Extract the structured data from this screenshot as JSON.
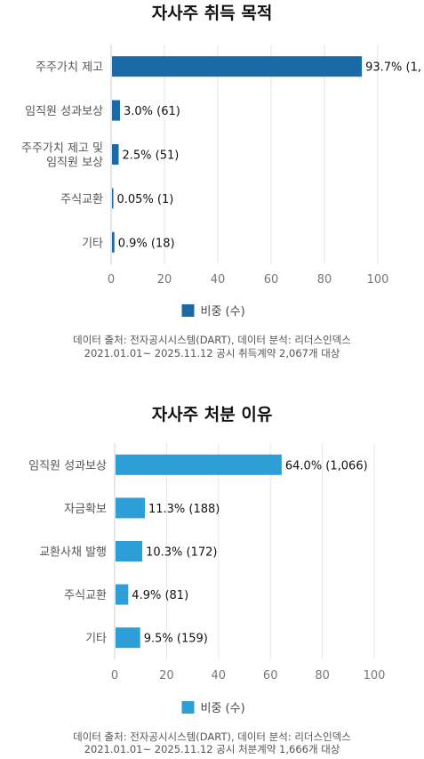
{
  "chart_data": [
    {
      "type": "bar",
      "orientation": "horizontal",
      "title": "자사주 취득 목적",
      "categories": [
        [
          "주주가치 제고"
        ],
        [
          "임직원 성과보상"
        ],
        [
          "주주가치 제고 및",
          "임직원 보상"
        ],
        [
          "주식교환"
        ],
        [
          "기타"
        ]
      ],
      "series": [
        {
          "name": "비중 (수)",
          "color": "#1a6aa8",
          "values": [
            93.7,
            3.0,
            2.5,
            0.05,
            0.9
          ],
          "labels": [
            "93.7%  (1,",
            "3.0%  (61)",
            "2.5%  (51)",
            "0.05%  (1)",
            "0.9%  (18)"
          ]
        }
      ],
      "xlim": [
        0,
        100
      ],
      "xticks": [
        "0",
        "20",
        "40",
        "60",
        "80",
        "100"
      ],
      "grid": true,
      "legend_position": "bottom",
      "notes": [
        "데이터 출처: 전자공시시스템(DART),  데이터 분석: 리더스인덱스",
        "2021.01.01~ 2025.11.12 공시 취득계약 2,067개 대상"
      ]
    },
    {
      "type": "bar",
      "orientation": "horizontal",
      "title": "자사주 처분 이유",
      "categories": [
        [
          "임직원 성과보상"
        ],
        [
          "자금확보"
        ],
        [
          "교환사채 발행"
        ],
        [
          "주식교환"
        ],
        [
          "기타"
        ]
      ],
      "series": [
        {
          "name": "비중 (수)",
          "color": "#2e9fd6",
          "values": [
            64.0,
            11.3,
            10.3,
            4.9,
            9.5
          ],
          "labels": [
            "64.0% (1,066)",
            "11.3%  (188)",
            "10.3%  (172)",
            "4.9%  (81)",
            "9.5% (159)"
          ]
        }
      ],
      "xlim": [
        0,
        100
      ],
      "xticks": [
        "0",
        "20",
        "40",
        "60",
        "80",
        "100"
      ],
      "grid": true,
      "legend_position": "bottom",
      "notes": [
        "데이터 출처: 전자공시시스템(DART),  데이터 분석: 리더스인덱스",
        "2021.01.01~ 2025.11.12 공시 처분계약 1,666개 대상"
      ]
    }
  ]
}
